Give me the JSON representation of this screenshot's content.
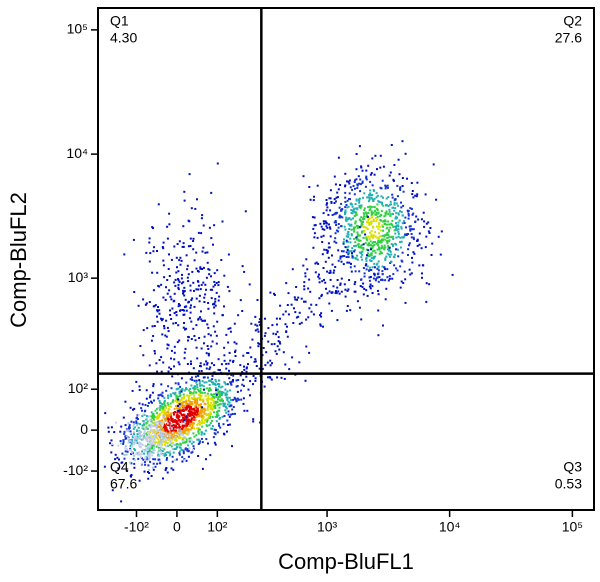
{
  "chart_data": {
    "type": "flow-quadrant",
    "x_label": "Comp-BluFL1",
    "y_label": "Comp-BluFL2",
    "scale": "biexponential",
    "xlim": [
      -250,
      150000
    ],
    "ylim": [
      -250,
      150000
    ],
    "xticks": [
      {
        "value": -100,
        "label": "-10²"
      },
      0,
      {
        "value": 100,
        "label": "10²"
      },
      {
        "value": 1000,
        "label": "10³"
      },
      {
        "value": 10000,
        "label": "10⁴"
      },
      {
        "value": 100000,
        "label": "10⁵"
      }
    ],
    "yticks": [
      {
        "value": -100,
        "label": "-10²"
      },
      0,
      {
        "value": 100,
        "label": "10²"
      },
      {
        "value": 1000,
        "label": "10³"
      },
      {
        "value": 10000,
        "label": "10⁴"
      },
      {
        "value": 100000,
        "label": "10⁵"
      }
    ],
    "gate": {
      "x": 280,
      "y": 150
    },
    "quadrants": {
      "names": [
        "Q1",
        "Q2",
        "Q3",
        "Q4"
      ],
      "values": [
        4.3,
        27.6,
        0.53,
        67.6
      ],
      "value_labels": [
        "4.30",
        "27.6",
        "0.53",
        "67.6"
      ]
    }
  }
}
